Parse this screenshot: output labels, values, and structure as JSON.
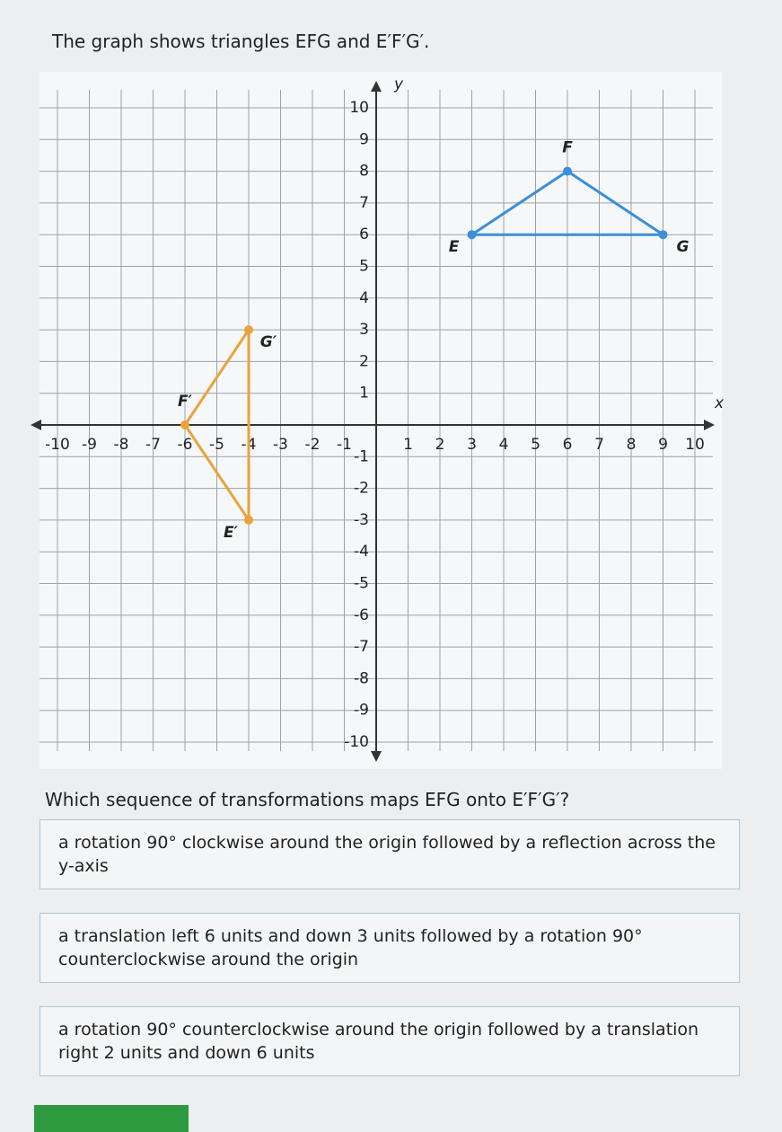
{
  "question": {
    "intro": "The graph shows triangles EFG and E′F′G′.",
    "prompt": "Which sequence of transformations maps EFG onto E′F′G′?",
    "options": [
      "a rotation 90° clockwise around the origin followed by a reflection across the y-axis",
      "a translation left 6 units and down 3 units followed by a rotation 90° counterclockwise around the origin",
      "a rotation 90° counterclockwise around the origin followed by a translation right 2 units and down 6 units"
    ]
  },
  "chart_data": {
    "type": "triangles",
    "xlabel": "x",
    "ylabel": "y",
    "xlim": [
      -10,
      10
    ],
    "ylim": [
      -10,
      10
    ],
    "xticks": [
      -10,
      -9,
      -8,
      -7,
      -6,
      -5,
      -4,
      -3,
      -2,
      -1,
      1,
      2,
      3,
      4,
      5,
      6,
      7,
      8,
      9,
      10
    ],
    "yticks": [
      -10,
      -9,
      -8,
      -7,
      -6,
      -5,
      -4,
      -3,
      -2,
      -1,
      1,
      2,
      3,
      4,
      5,
      6,
      7,
      8,
      9,
      10
    ],
    "grid": true,
    "triangles": [
      {
        "color": "#3a8fd9",
        "points": [
          {
            "label": "E",
            "x": 3,
            "y": 6
          },
          {
            "label": "F",
            "x": 6,
            "y": 8
          },
          {
            "label": "G",
            "x": 9,
            "y": 6
          }
        ]
      },
      {
        "color": "#e8a33c",
        "points": [
          {
            "label": "E′",
            "x": -4,
            "y": -3
          },
          {
            "label": "F′",
            "x": -6,
            "y": 0
          },
          {
            "label": "G′",
            "x": -4,
            "y": 3
          }
        ]
      }
    ]
  }
}
